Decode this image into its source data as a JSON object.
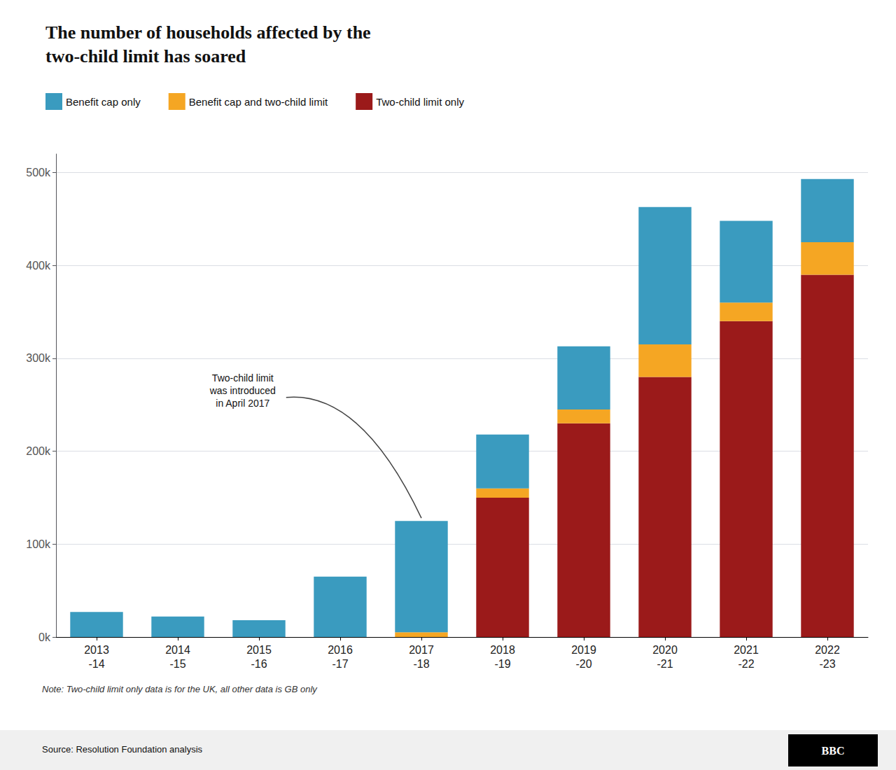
{
  "chart_data": {
    "type": "bar",
    "title": "The number of households affected by the\ntwo-child limit has soared",
    "categories": [
      "2013\n-14",
      "2014\n-15",
      "2015\n-16",
      "2016\n-17",
      "2017\n-18",
      "2018\n-19",
      "2019\n-20",
      "2020\n-21",
      "2021\n-22",
      "2022\n-23"
    ],
    "series": [
      {
        "name": "Two-child limit only",
        "color": "#9b1a1a",
        "values": [
          0,
          0,
          0,
          0,
          0,
          150000,
          230000,
          280000,
          340000,
          390000
        ]
      },
      {
        "name": "Benefit cap and two-child limit",
        "color": "#f5a623",
        "values": [
          0,
          0,
          0,
          0,
          5000,
          10000,
          15000,
          35000,
          20000,
          35000
        ]
      },
      {
        "name": "Benefit cap only",
        "color": "#3a9bbf",
        "values": [
          27000,
          22000,
          18000,
          65000,
          120000,
          58000,
          68000,
          148000,
          88000,
          68000
        ]
      }
    ],
    "stacked": true,
    "ylim": [
      0,
      520000
    ],
    "yticks": [
      {
        "value": 0,
        "label": "0k"
      },
      {
        "value": 100000,
        "label": "100k"
      },
      {
        "value": 200000,
        "label": "200k"
      },
      {
        "value": 300000,
        "label": "300k"
      },
      {
        "value": 400000,
        "label": "400k"
      },
      {
        "value": 500000,
        "label": "500k"
      }
    ],
    "grid": true,
    "legend": "upper left",
    "annotations": [
      {
        "text": "Two-child limit\nwas introduced\nin April 2017",
        "x": "2017\n-18"
      }
    ],
    "note": "Note: Two-child limit only data is for the UK, all other data is GB only",
    "source": "Source: Resolution Foundation analysis",
    "credit": "BBC"
  }
}
